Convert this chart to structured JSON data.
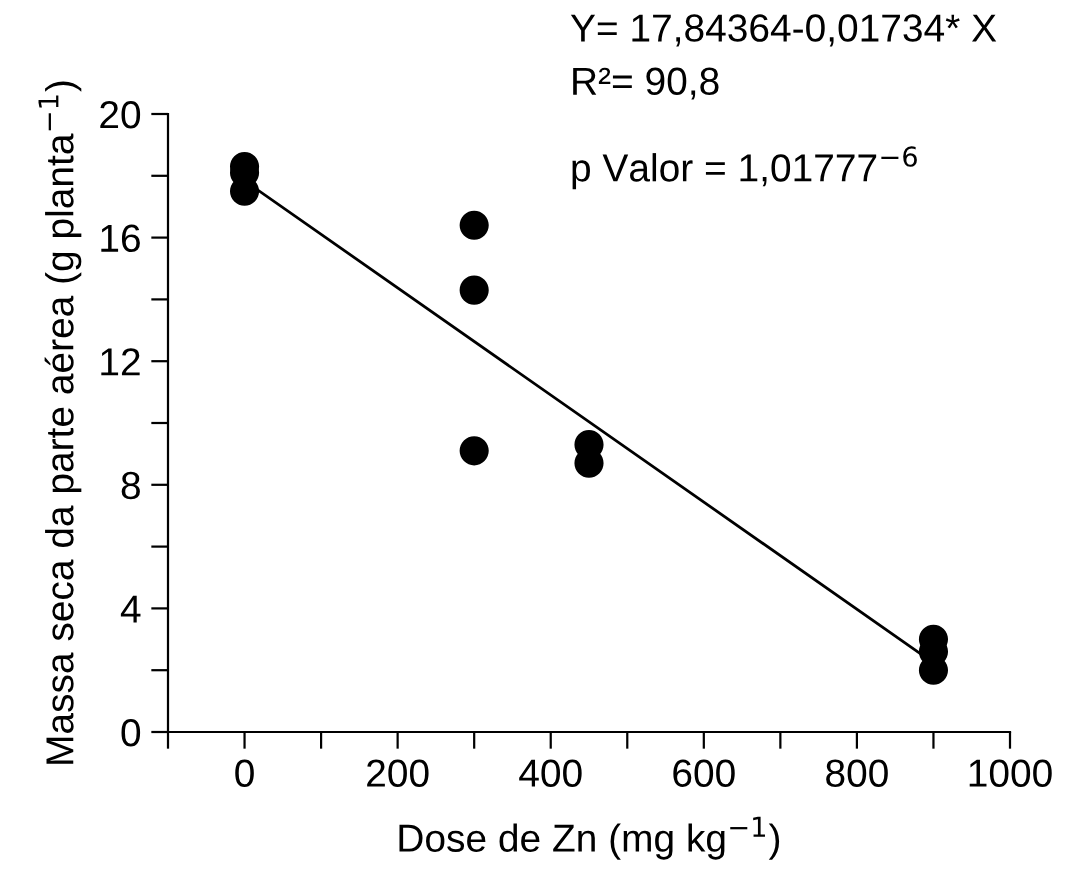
{
  "chart_data": {
    "type": "scatter",
    "xlabel": "Dose de Zn (mg kg$^{−1}$)",
    "ylabel": "Massa seca da parte aérea (g planta$^{−1}$)",
    "annotations": [
      "Y= 17,84364-0,01734* X",
      "R²= 90,8",
      "p Valor = 1,01777$^{−6}$"
    ],
    "series": [
      {
        "color": "#000000",
        "marker": "circle",
        "x": [
          0,
          0,
          0,
          300,
          300,
          300,
          450,
          450,
          900,
          900,
          900
        ],
        "values": [
          18.3,
          18.1,
          17.5,
          16.4,
          14.3,
          9.1,
          9.3,
          8.7,
          3.0,
          2.6,
          2.0
        ]
      },
      {
        "type": "line",
        "color": "#000000",
        "line_style": "solid",
        "x": [
          0,
          900
        ],
        "values": [
          17.84,
          2.24
        ]
      }
    ],
    "xlim": [
      -100,
      1000
    ],
    "ylim": [
      0,
      20
    ],
    "xticks": [
      {
        "value": -100,
        "label": null
      },
      0,
      {
        "value": 100,
        "label": null
      },
      200,
      {
        "value": 300,
        "label": null
      },
      400,
      {
        "value": 500,
        "label": null
      },
      600,
      {
        "value": 700,
        "label": null
      },
      800,
      {
        "value": 900,
        "label": null
      },
      1000
    ],
    "yticks": [
      0,
      {
        "value": 2,
        "label": null
      },
      4,
      {
        "value": 6,
        "label": null
      },
      8,
      {
        "value": 10,
        "label": null
      },
      12,
      {
        "value": 14,
        "label": null
      },
      16,
      {
        "value": 18,
        "label": null
      },
      20
    ],
    "grid": false,
    "legend": false
  }
}
